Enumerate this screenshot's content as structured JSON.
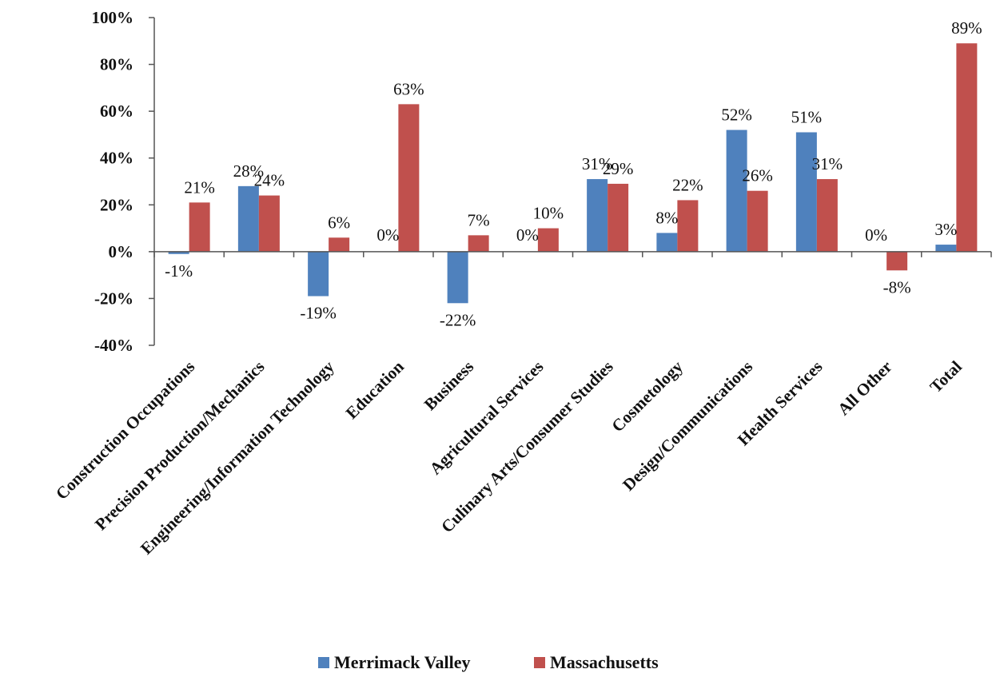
{
  "chart_data": {
    "type": "bar",
    "categories": [
      "Construction Occupations",
      "Precision Production/Mechanics",
      "Engineering/Information Technology",
      "Education",
      "Business",
      "Agricultural Services",
      "Culinary Arts/Consumer Studies",
      "Cosmetology",
      "Design/Communications",
      "Health Services",
      "All Other",
      "Total"
    ],
    "series": [
      {
        "name": "Merrimack Valley",
        "color": "#4f81bd",
        "values": [
          -0.01,
          0.28,
          -0.19,
          0.0,
          -0.22,
          0.0,
          0.31,
          0.08,
          0.52,
          0.51,
          0.0,
          0.03
        ],
        "labels": [
          "-1%",
          "28%",
          "-19%",
          "0%",
          "-22%",
          "0%",
          "31%",
          "8%",
          "52%",
          "51%",
          "0%",
          "3%"
        ]
      },
      {
        "name": "Massachusetts",
        "color": "#c0504d",
        "values": [
          0.21,
          0.24,
          0.06,
          0.63,
          0.07,
          0.1,
          0.29,
          0.22,
          0.26,
          0.31,
          -0.08,
          0.89
        ],
        "labels": [
          "21%",
          "24%",
          "6%",
          "63%",
          "7%",
          "10%",
          "29%",
          "22%",
          "26%",
          "31%",
          "-8%",
          "89%"
        ]
      }
    ],
    "ylim": [
      -0.4,
      1.0
    ],
    "yticks": [
      -0.4,
      -0.2,
      0.0,
      0.2,
      0.4,
      0.6,
      0.8,
      1.0
    ],
    "ytick_labels": [
      "-40%",
      "-20%",
      "0%",
      "20%",
      "40%",
      "60%",
      "80%",
      "100%"
    ],
    "title": "",
    "xlabel": "",
    "ylabel": "",
    "grid": false,
    "legend_position": "bottom"
  }
}
